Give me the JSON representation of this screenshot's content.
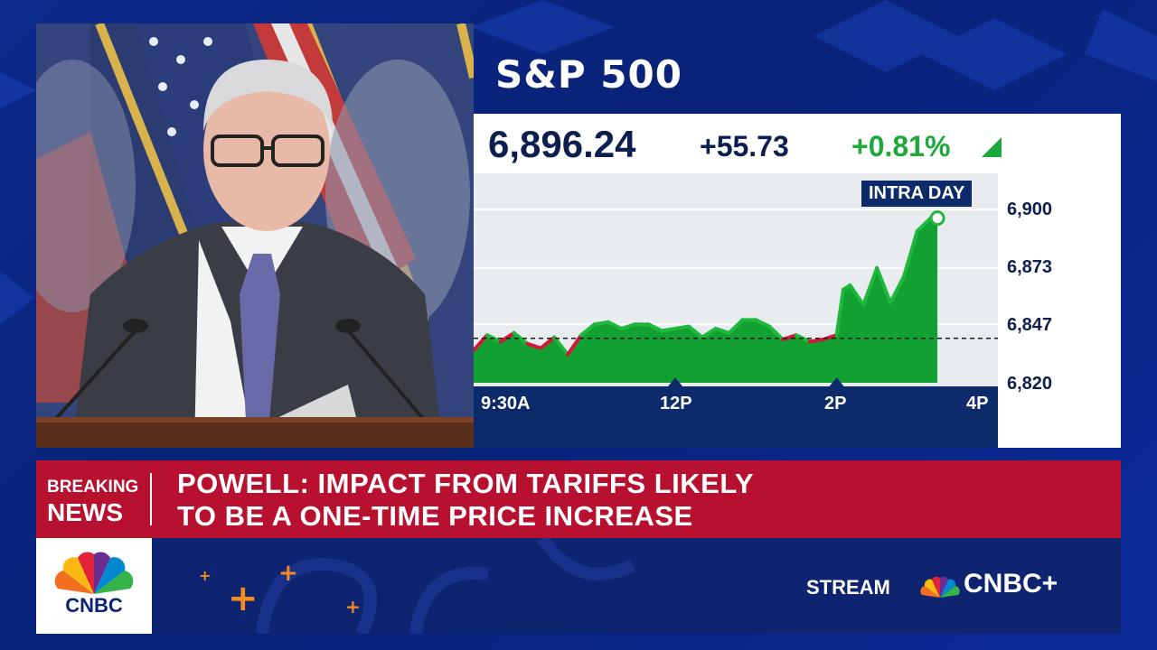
{
  "index": {
    "name": "S&P 500",
    "price": "6,896.24",
    "change": "+55.73",
    "percent_change": "+0.81%",
    "direction": "up",
    "badge": "INTRA DAY"
  },
  "chart_data": {
    "type": "area",
    "x_tick_labels": [
      "9:30A",
      "12P",
      "2P",
      "4P"
    ],
    "y_tick_labels": [
      "6,900",
      "6,873",
      "6,847",
      "6,820"
    ],
    "ylim": [
      6820,
      6900
    ],
    "previous_close": 6840.5,
    "series": [
      {
        "x": [
          "9:30A",
          "9:40A",
          "9:50A",
          "10:00A",
          "10:10A",
          "10:20A",
          "10:30A",
          "10:40A",
          "10:50A",
          "11:00A",
          "11:10A",
          "11:20A",
          "11:30A",
          "11:40A",
          "11:50A",
          "12:00P",
          "12:10P",
          "12:20P",
          "12:30P",
          "12:40P",
          "12:50P",
          "1:00P",
          "1:10P",
          "1:20P",
          "1:30P",
          "1:40P",
          "1:50P",
          "2:00P",
          "2:05P",
          "2:10P",
          "2:20P",
          "2:30P",
          "2:40P",
          "2:50P",
          "3:00P",
          "3:10P",
          "3:15P"
        ],
        "values": [
          6835,
          6842,
          6839,
          6843,
          6838,
          6836,
          6841,
          6833,
          6842,
          6847,
          6848,
          6845,
          6847,
          6847,
          6844,
          6845,
          6846,
          6841,
          6845,
          6843,
          6849,
          6849,
          6846,
          6840,
          6842,
          6839,
          6840,
          6842,
          6863,
          6865,
          6856,
          6873,
          6857,
          6869,
          6890,
          6896,
          6896
        ]
      }
    ],
    "colors": {
      "up": "#1fb83d",
      "down": "#d3183b",
      "fill": "#12a032"
    }
  },
  "breaking": {
    "label_line1": "BREAKING",
    "label_line2": "NEWS",
    "headline_line1": "POWELL: IMPACT FROM TARIFFS LIKELY",
    "headline_line2": "TO BE A ONE-TIME PRICE INCREASE"
  },
  "branding": {
    "logo_text": "CNBC",
    "stream_label": "STREAM",
    "stream_brand": "CNBC+"
  },
  "colors": {
    "breaking_red": "#b8112f",
    "navy": "#0d2a6b",
    "positive_green": "#1fa83a"
  }
}
